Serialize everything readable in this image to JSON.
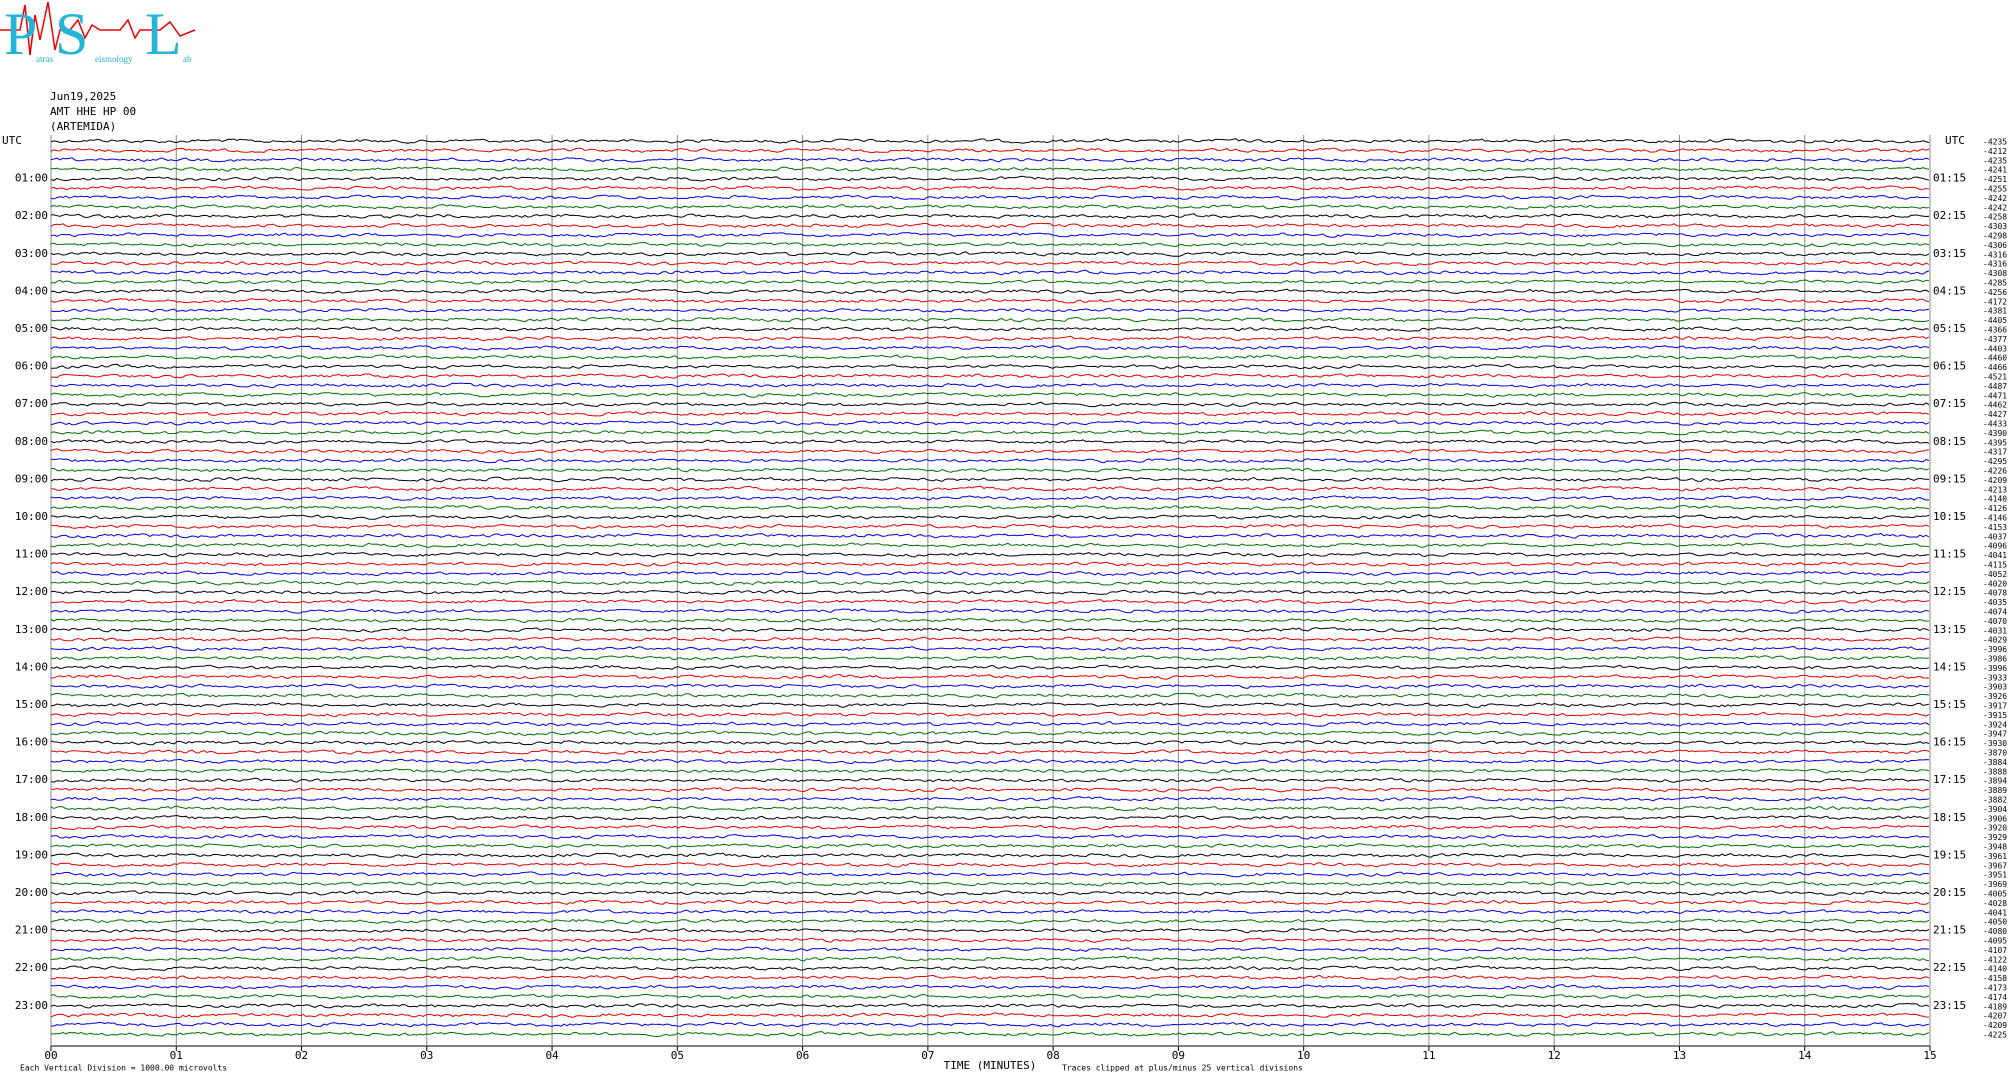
{
  "chart_data": {
    "type": "helicorder",
    "logo": {
      "letters": [
        "P",
        "S",
        "L"
      ],
      "words": [
        "atras",
        "eismology",
        "ab"
      ]
    },
    "date": "Jun19,2025",
    "station": "AMT HHE HP 00",
    "site": "(ARTEMIDA)",
    "x_label": "TIME (MINUTES)",
    "scale_note": "Each Vertical Division = 1000.00 microvolts",
    "clip_note": "Traces clipped at plus/minus 25 vertical divisions",
    "xlim": [
      0,
      15
    ],
    "xticks": [
      {
        "value": 0,
        "label": "00"
      },
      {
        "value": 1,
        "label": "01"
      },
      {
        "value": 2,
        "label": "02"
      },
      {
        "value": 3,
        "label": "03"
      },
      {
        "value": 4,
        "label": "04"
      },
      {
        "value": 5,
        "label": "05"
      },
      {
        "value": 6,
        "label": "06"
      },
      {
        "value": 7,
        "label": "07"
      },
      {
        "value": 8,
        "label": "08"
      },
      {
        "value": 9,
        "label": "09"
      },
      {
        "value": 10,
        "label": "10"
      },
      {
        "value": 11,
        "label": "11"
      },
      {
        "value": 12,
        "label": "12"
      },
      {
        "value": 13,
        "label": "13"
      },
      {
        "value": 14,
        "label": "14"
      },
      {
        "value": 15,
        "label": "15"
      }
    ],
    "left_labels": [
      "UTC",
      "01:00",
      "02:00",
      "03:00",
      "04:00",
      "05:00",
      "06:00",
      "07:00",
      "08:00",
      "09:00",
      "10:00",
      "11:00",
      "12:00",
      "13:00",
      "14:00",
      "15:00",
      "16:00",
      "17:00",
      "18:00",
      "19:00",
      "20:00",
      "21:00",
      "22:00",
      "23:00"
    ],
    "right_labels": [
      "UTC",
      "01:15",
      "02:15",
      "03:15",
      "04:15",
      "05:15",
      "06:15",
      "07:15",
      "08:15",
      "09:15",
      "10:15",
      "11:15",
      "12:15",
      "13:15",
      "14:15",
      "15:15",
      "16:15",
      "17:15",
      "18:15",
      "19:15",
      "20:15",
      "21:15",
      "22:15",
      "23:15"
    ],
    "trace_offsets": [
      -4235,
      -4212,
      -4235,
      -4241,
      -4251,
      -4255,
      -4242,
      -4242,
      -4258,
      -4303,
      -4298,
      -4306,
      -4316,
      -4316,
      -4308,
      -4285,
      -4256,
      -4172,
      -4381,
      -4405,
      -4366,
      -4377,
      -4403,
      -4460,
      -4466,
      -4521,
      -4487,
      -4471,
      -4462,
      -4427,
      -4433,
      -4390,
      -4395,
      -4317,
      -4295,
      -4226,
      -4209,
      -4213,
      -4140,
      -4126,
      -4146,
      -4153,
      -4037,
      -4096,
      -4041,
      -4115,
      -4052,
      -4020,
      -4078,
      -4035,
      -4074,
      -4070,
      -4031,
      -4029,
      -3996,
      -3986,
      -3996,
      -3933,
      -3903,
      -3926,
      -3917,
      -3915,
      -3924,
      -3947,
      -3930,
      -3870,
      -3884,
      -3888,
      -3894,
      -3889,
      -3882,
      -3904,
      -3906,
      -3920,
      -3929,
      -3948,
      -3961,
      -3967,
      -3951,
      -3969,
      -4005,
      -4028,
      -4041,
      -4050,
      -4080,
      -4095,
      -4107,
      -4122,
      -4140,
      -4158,
      -4173,
      -4174,
      -4189,
      -4207,
      -4209,
      -4225
    ],
    "trace_colors": [
      "#000000",
      "#e00000",
      "#0000e0",
      "#007000"
    ],
    "grid": true
  }
}
